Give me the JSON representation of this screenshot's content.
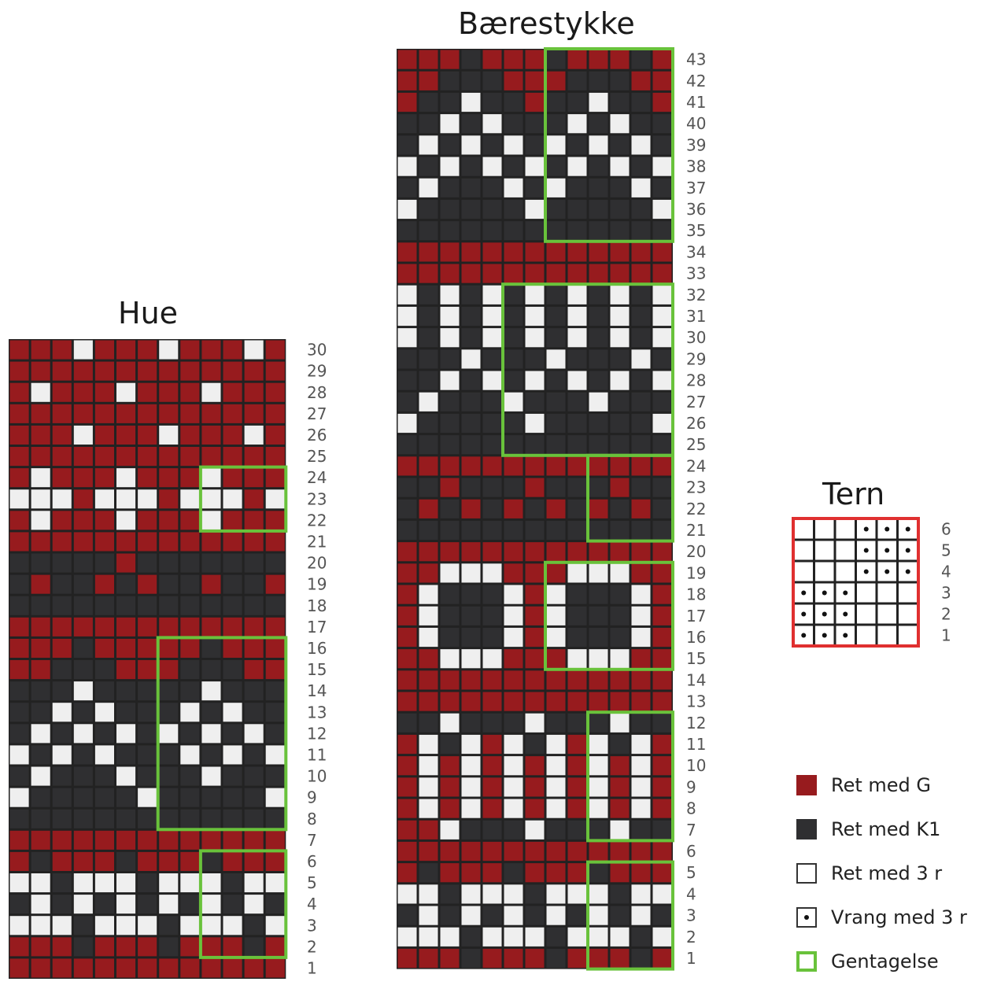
{
  "titles": {
    "hue": "Hue",
    "baerestykke": "Bærestykke",
    "tern": "Tern"
  },
  "colors": {
    "G": "#971b1e",
    "K1": "#2f2f31",
    "white": "#efefef",
    "repeat": "#69c23b",
    "tern_border": "#e03030",
    "grid_line": "#222222"
  },
  "hue": {
    "cols": 13,
    "rows": [
      {
        "n": 30,
        "cells": "RRRWRRRWRRRWR"
      },
      {
        "n": 29,
        "cells": "RRRRRRRRRRRRR"
      },
      {
        "n": 28,
        "cells": "RWRRRWRRRWRRR"
      },
      {
        "n": 27,
        "cells": "RRRRRRRRRRRRR"
      },
      {
        "n": 26,
        "cells": "RRRWRRRWRRRWR"
      },
      {
        "n": 25,
        "cells": "RRRRRRRRRRRRR"
      },
      {
        "n": 24,
        "cells": "RWRRRWRRRWRRR"
      },
      {
        "n": 23,
        "cells": "WWWRWWWRWWWRW"
      },
      {
        "n": 22,
        "cells": "RWRRRWRRRWRRR"
      },
      {
        "n": 21,
        "cells": "RRRRRRRRRRRRR"
      },
      {
        "n": 20,
        "cells": "KKKKKRKKKKKKK"
      },
      {
        "n": 19,
        "cells": "KRKKRKRKKRKKR"
      },
      {
        "n": 18,
        "cells": "KKKKKKKKKKKKK"
      },
      {
        "n": 17,
        "cells": "RRRRRRRRRRRRR"
      },
      {
        "n": 16,
        "cells": "RRRKRRRRRKRRR"
      },
      {
        "n": 15,
        "cells": "RRKKKRRRKKKRR"
      },
      {
        "n": 14,
        "cells": "KKKWKKKKKWKKK"
      },
      {
        "n": 13,
        "cells": "KKWKWKKKWKWKK"
      },
      {
        "n": 12,
        "cells": "KWKWKWKWKWKWK"
      },
      {
        "n": 11,
        "cells": "WKWKWKKKWKWKW"
      },
      {
        "n": 10,
        "cells": "KWKKKWKKKWKKK"
      },
      {
        "n": 9,
        "cells": "WKKKKKWKKKKKW"
      },
      {
        "n": 8,
        "cells": "KKKKKKKKKKKKK"
      },
      {
        "n": 7,
        "cells": "RRRRRRRRRRRRR"
      },
      {
        "n": 6,
        "cells": "RKRRRKRRRKRRR"
      },
      {
        "n": 5,
        "cells": "WWKWWWKWWWKWW"
      },
      {
        "n": 4,
        "cells": "KWKWKWKWKWKWK"
      },
      {
        "n": 3,
        "cells": "WWWKWWWKWWWKW"
      },
      {
        "n": 2,
        "cells": "RRRKRRRKRRRKR"
      },
      {
        "n": 1,
        "cells": "RRRRRRRRRRRRR"
      }
    ],
    "repeats": [
      {
        "rows": [
          22,
          24
        ],
        "cols": [
          10,
          13
        ]
      },
      {
        "rows": [
          8,
          16
        ],
        "cols": [
          8,
          13
        ]
      },
      {
        "rows": [
          2,
          6
        ],
        "cols": [
          10,
          13
        ]
      }
    ]
  },
  "baerestykke": {
    "cols": 13,
    "rows": [
      {
        "n": 43,
        "cells": "RRRKRRRKRRRKR"
      },
      {
        "n": 42,
        "cells": "RRKKKRRRKKKRR"
      },
      {
        "n": 41,
        "cells": "RKKWKKRKKWKKR"
      },
      {
        "n": 40,
        "cells": "KKWKWKKKWKWKK"
      },
      {
        "n": 39,
        "cells": "KWKWKWKWKWKWK"
      },
      {
        "n": 38,
        "cells": "WKWKWKWKWKWKW"
      },
      {
        "n": 37,
        "cells": "KWKKKWKWKKKWK"
      },
      {
        "n": 36,
        "cells": "WKKKKKWKKKKKW"
      },
      {
        "n": 35,
        "cells": "KKKKKKKKKKKKK"
      },
      {
        "n": 34,
        "cells": "RRRRRRRRRRRRR"
      },
      {
        "n": 33,
        "cells": "RRRRRRRRRRRRR"
      },
      {
        "n": 32,
        "cells": "WKWKWKWKWKWKW"
      },
      {
        "n": 31,
        "cells": "WKWKWKWKWKWKW"
      },
      {
        "n": 30,
        "cells": "WKWKWKWKWKWKW"
      },
      {
        "n": 29,
        "cells": "KKKWKKKWKKKWK"
      },
      {
        "n": 28,
        "cells": "KKWKWKWKWKWKW"
      },
      {
        "n": 27,
        "cells": "KWKKKWKKKWKKK"
      },
      {
        "n": 26,
        "cells": "WKKKKKWKKKKKW"
      },
      {
        "n": 25,
        "cells": "KKKKKKKKKKKKK"
      },
      {
        "n": 24,
        "cells": "RRRRRRRRRRRRR"
      },
      {
        "n": 23,
        "cells": "KKRKKKRKKKRKK"
      },
      {
        "n": 22,
        "cells": "KRKRKRKRKRKRK"
      },
      {
        "n": 21,
        "cells": "KKKKKKKKKKKKK"
      },
      {
        "n": 20,
        "cells": "RRRRRRRRRRRRR"
      },
      {
        "n": 19,
        "cells": "RRWWWRRRWWWRR"
      },
      {
        "n": 18,
        "cells": "RWKKKWRWKKKWR"
      },
      {
        "n": 17,
        "cells": "RWKKKWRWKKKWR"
      },
      {
        "n": 16,
        "cells": "RWKKKWRWKKKWR"
      },
      {
        "n": 15,
        "cells": "RRWWWRRRWWWRR"
      },
      {
        "n": 14,
        "cells": "RRRRRRRRRRRRR"
      },
      {
        "n": 13,
        "cells": "RRRRRRRRRRRRR"
      },
      {
        "n": 12,
        "cells": "KKWKKKWKKKWKK"
      },
      {
        "n": 11,
        "cells": "RWKWRWKWRWKWR"
      },
      {
        "n": 10,
        "cells": "RWRWRWRWRWRWR"
      },
      {
        "n": 9,
        "cells": "RWRWRWRWRWRWR"
      },
      {
        "n": 8,
        "cells": "RWRWRWRWRWRWR"
      },
      {
        "n": 7,
        "cells": "RRWKKKWKKKWKK"
      },
      {
        "n": 6,
        "cells": "RRRRRRRRRRRRR"
      },
      {
        "n": 5,
        "cells": "RKRRRKRRRKRRR"
      },
      {
        "n": 4,
        "cells": "WWKWWWKWWWKWW"
      },
      {
        "n": 3,
        "cells": "KWKWKWKWKWKWK"
      },
      {
        "n": 2,
        "cells": "WWWKWWWKWWWKW"
      },
      {
        "n": 1,
        "cells": "RRRKRRRKRRRKR"
      }
    ],
    "repeats": [
      {
        "rows": [
          35,
          43
        ],
        "cols": [
          8,
          13
        ]
      },
      {
        "rows": [
          25,
          32
        ],
        "cols": [
          6,
          13
        ]
      },
      {
        "rows": [
          21,
          24
        ],
        "cols": [
          10,
          13
        ]
      },
      {
        "rows": [
          15,
          19
        ],
        "cols": [
          8,
          13
        ]
      },
      {
        "rows": [
          7,
          12
        ],
        "cols": [
          10,
          13
        ]
      },
      {
        "rows": [
          1,
          5
        ],
        "cols": [
          10,
          13
        ]
      }
    ]
  },
  "tern": {
    "cols": 6,
    "rows": [
      {
        "n": 6,
        "cells": "EEEDDD"
      },
      {
        "n": 5,
        "cells": "EEEDDD"
      },
      {
        "n": 4,
        "cells": "EEEDDD"
      },
      {
        "n": 3,
        "cells": "DDDEEE"
      },
      {
        "n": 2,
        "cells": "DDDEEE"
      },
      {
        "n": 1,
        "cells": "DDDEEE"
      }
    ]
  },
  "legend": [
    {
      "name": "legend-ret-med-g",
      "label": "Ret med G",
      "swatch": "G"
    },
    {
      "name": "legend-ret-med-k1",
      "label": "Ret med K1",
      "swatch": "K1"
    },
    {
      "name": "legend-ret-med-3r",
      "label": "Ret med 3 r",
      "swatch": "white"
    },
    {
      "name": "legend-vrang-med-3r",
      "label": "Vrang med 3 r",
      "swatch": "dot"
    },
    {
      "name": "legend-gentagelse",
      "label": "Gentagelse",
      "swatch": "repeat"
    }
  ]
}
